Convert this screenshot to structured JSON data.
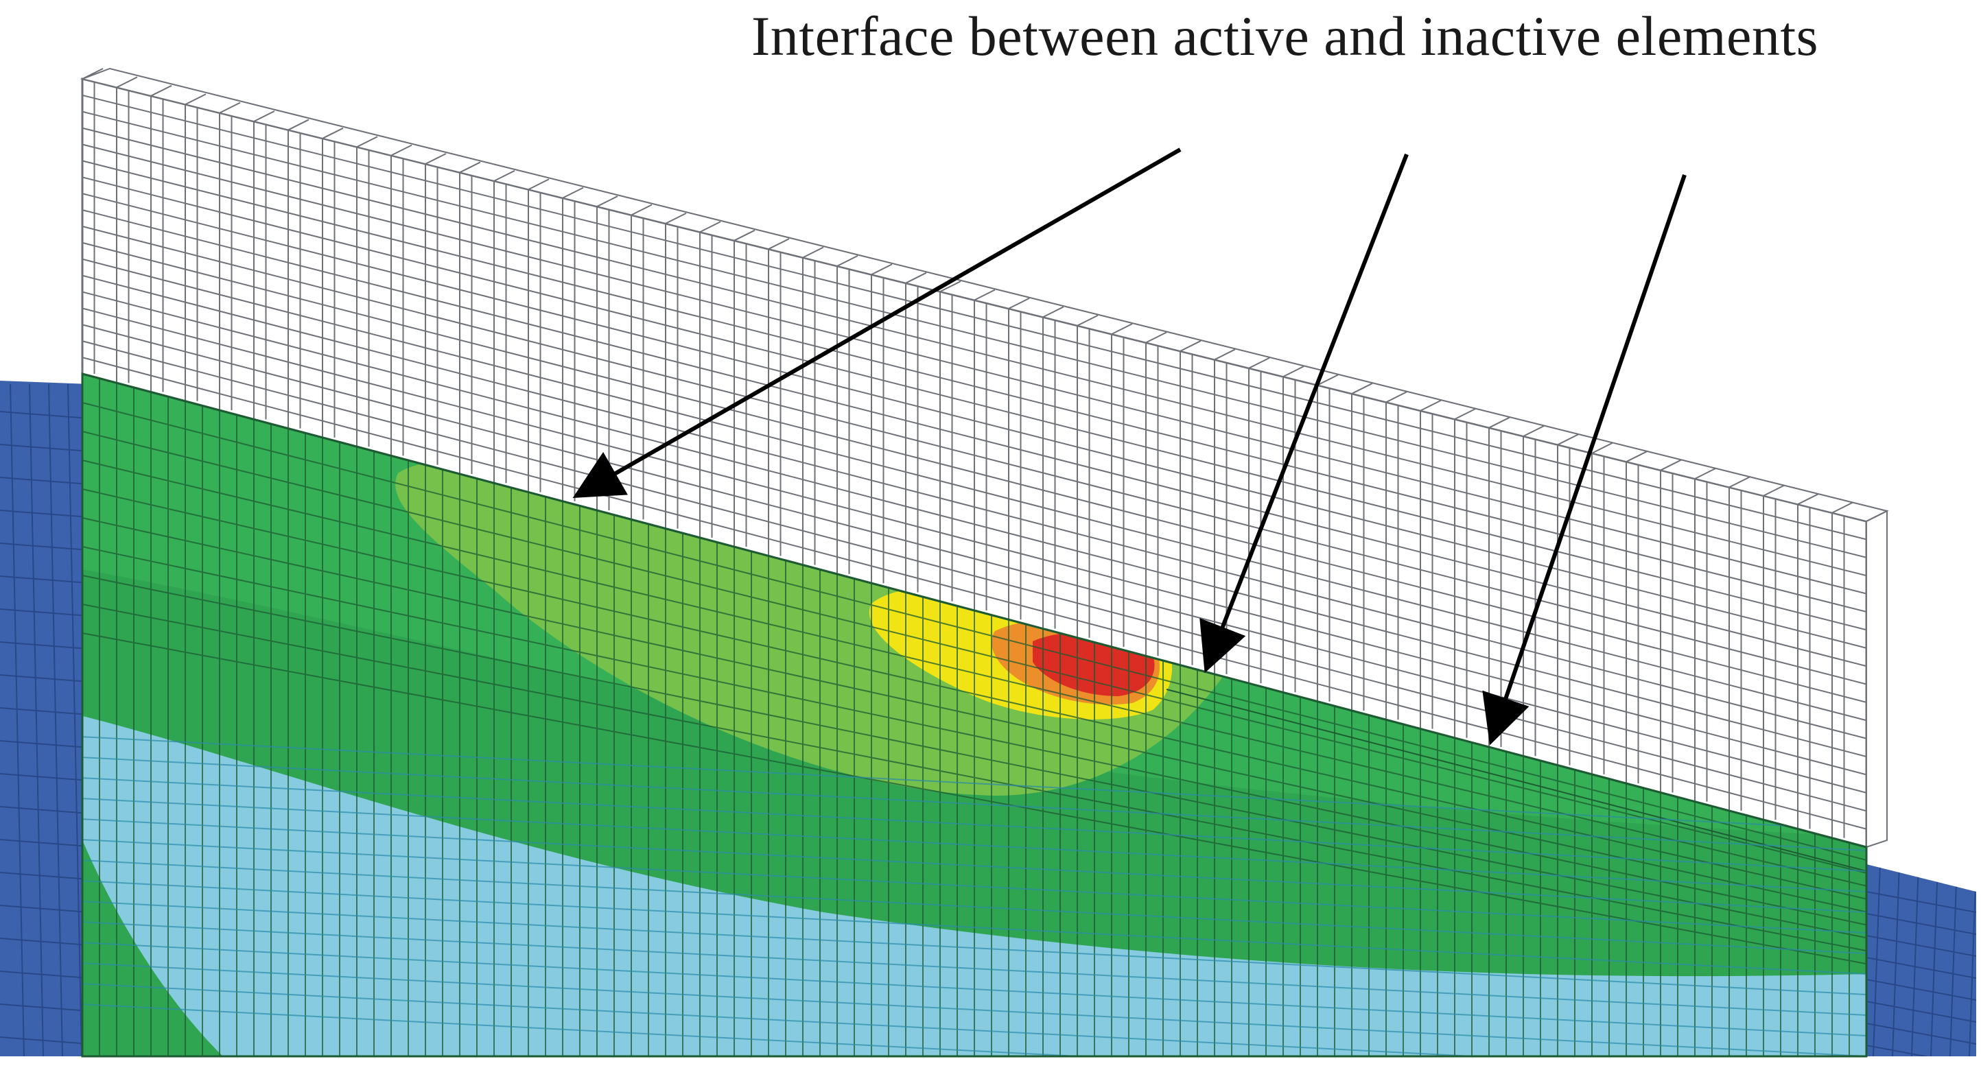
{
  "figure": {
    "annotation": "Interface between active and inactive elements",
    "colors": {
      "background": "#ffffff",
      "base_plate": "#3d62ad",
      "base_plate_grid": "#28488a",
      "inactive_grid_line": "#6e7178",
      "temp_light_blue": "#87cbe0",
      "temp_dark_green": "#2fa552",
      "temp_mid_green": "#35b056",
      "temp_light_green": "#76c04c",
      "temp_yellow": "#f0e414",
      "temp_orange": "#ec8f2a",
      "temp_red": "#dc2d25",
      "active_grid_line": "#1d5b32",
      "arrow": "#000000"
    },
    "arrows": 3
  }
}
